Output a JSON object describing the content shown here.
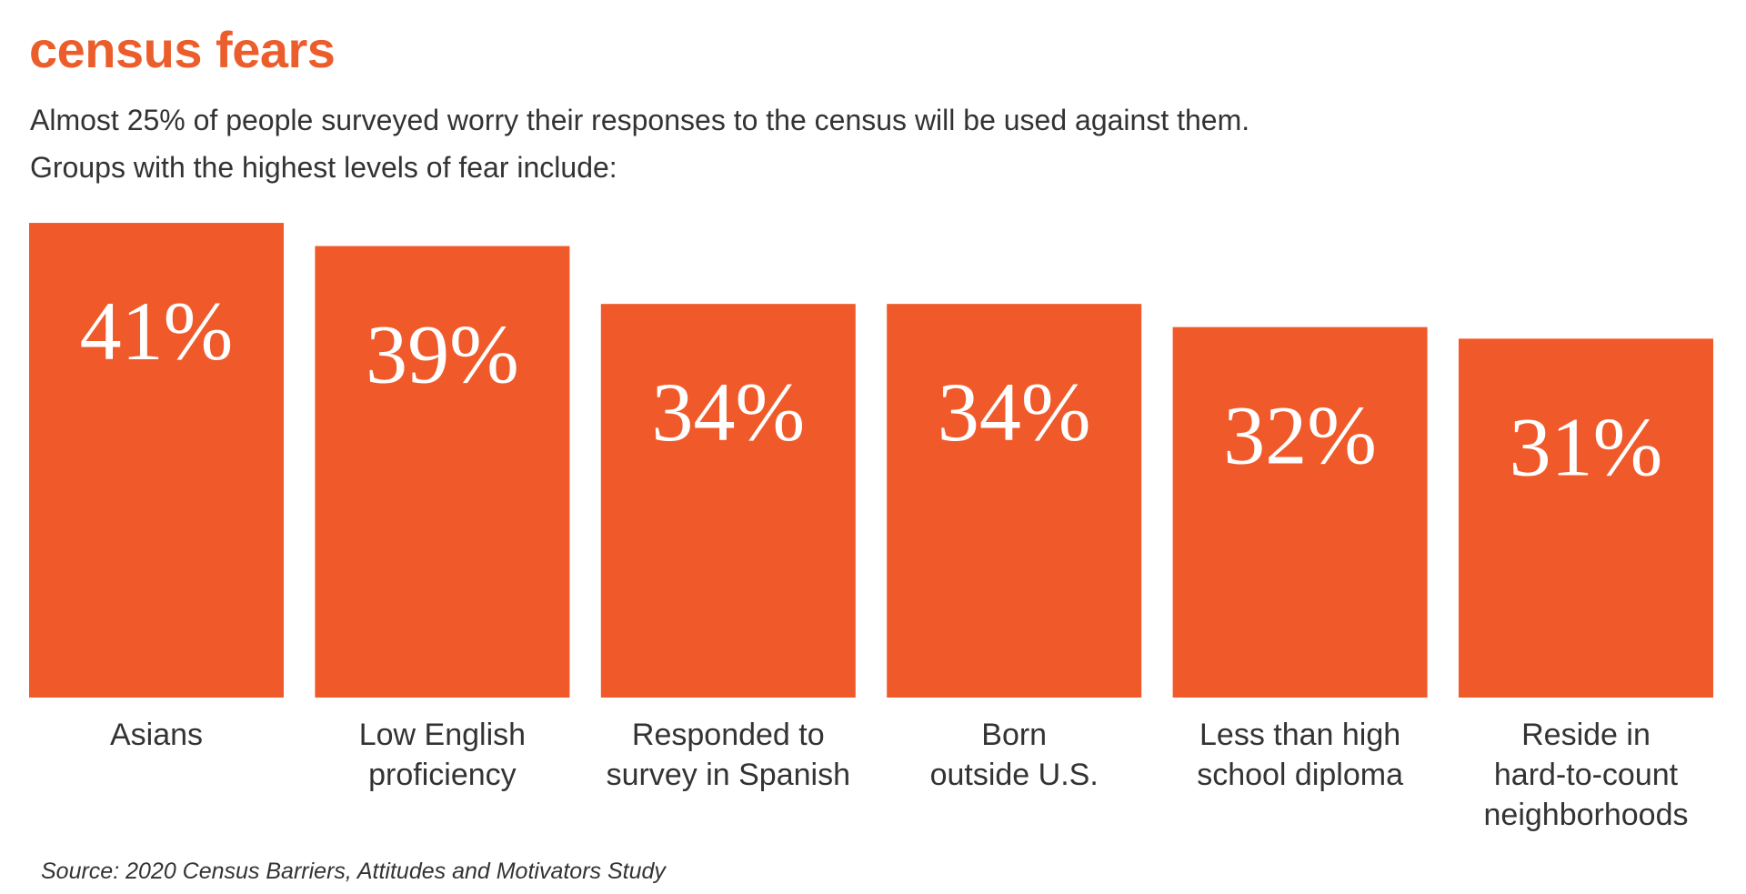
{
  "title": "census fears",
  "subtitle_line1": "Almost 25% of people surveyed worry their responses to the census will be used against them.",
  "subtitle_line2": "Groups with the highest levels of fear include:",
  "source": "Source: 2020 Census Barriers, Attitudes and Motivators Study",
  "colors": {
    "bar": "#F05A2A",
    "title": "#EB5E2C",
    "value_label": "#FFFFFF"
  },
  "chart_data": {
    "type": "bar",
    "categories": [
      "Asians",
      "Low English\nproficiency",
      "Responded to\nsurvey in Spanish",
      "Born\noutside U.S.",
      "Less than high\nschool diploma",
      "Reside in\nhard-to-count\nneighborhoods"
    ],
    "values": [
      41,
      39,
      34,
      34,
      32,
      31
    ],
    "value_labels": [
      "41%",
      "39%",
      "34%",
      "34%",
      "32%",
      "31%"
    ],
    "unit": "%",
    "ylim": [
      0,
      60
    ],
    "grid": false,
    "axes_visible": false
  }
}
